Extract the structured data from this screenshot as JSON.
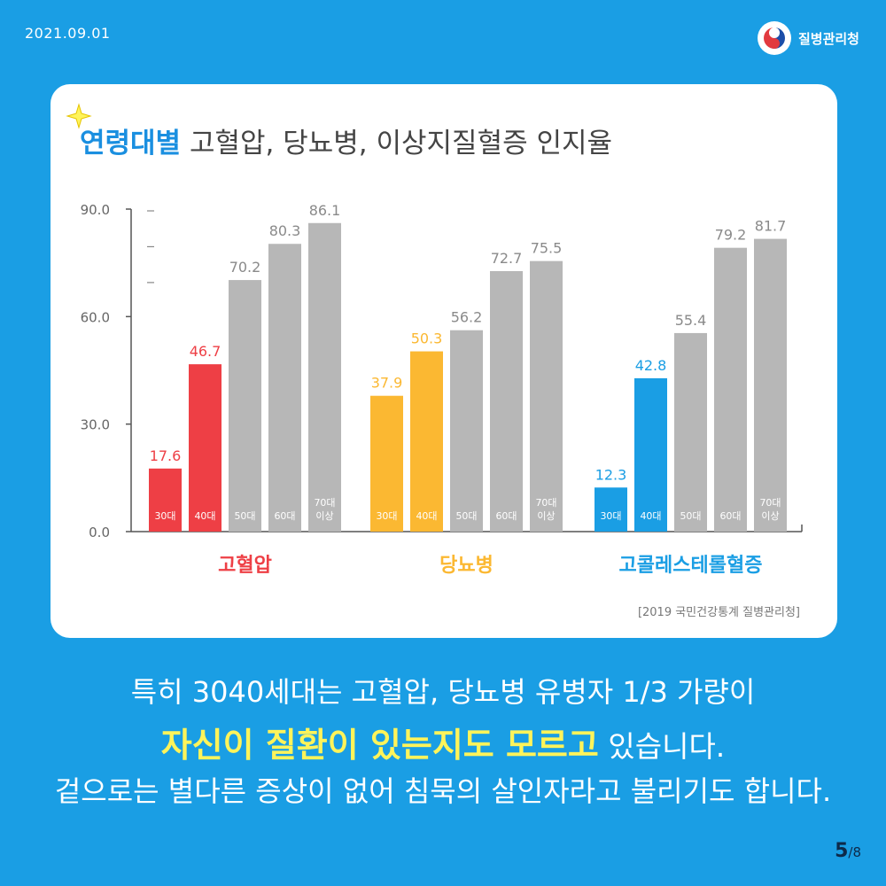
{
  "date": "2021.09.01",
  "brand": {
    "name": "질병관리청",
    "logo_icon": "taegeuk-icon"
  },
  "title": {
    "highlight": "연령대별",
    "rest": "고혈압, 당뇨병, 이상지질혈증 인지율"
  },
  "source": "[2019 국민건강통계 질병관리청]",
  "captions": {
    "line1": "특히 3040세대는 고혈압, 당뇨병 유병자 1/3 가량이",
    "line2_highlight": "자신이 질환이 있는지도 모르고",
    "line2_rest": "있습니다.",
    "line3": "겉으로는 별다른 증상이 없어 침묵의 살인자라고 불리기도 합니다."
  },
  "page": {
    "current": "5",
    "total": "/8"
  },
  "colors": {
    "background": "#1a9ee4",
    "hypertension": "#ee3f45",
    "diabetes": "#fbb832",
    "dyslipidemia": "#1a9ee4",
    "other_ages": "#b7b7b7",
    "highlight": "#fff45a"
  },
  "chart_data": {
    "type": "bar",
    "ylim": [
      0,
      90
    ],
    "yticks": [
      "0.0",
      "30.0",
      "60.0",
      "90.0"
    ],
    "groups": [
      {
        "name": "고혈압",
        "color": "#ee3f45",
        "categories": [
          "30대",
          "40대",
          "50대",
          "60대",
          "70대 이상"
        ],
        "values": [
          17.6,
          46.7,
          70.2,
          80.3,
          86.1
        ],
        "labels": [
          "17.6",
          "46.7",
          "70.2",
          "80.3",
          "86.1"
        ]
      },
      {
        "name": "당뇨병",
        "color": "#fbb832",
        "categories": [
          "30대",
          "40대",
          "50대",
          "60대",
          "70대 이상"
        ],
        "values": [
          37.9,
          50.3,
          56.2,
          72.7,
          75.5
        ],
        "labels": [
          "37.9",
          "50.3",
          "56.2",
          "72.7",
          "75.5"
        ]
      },
      {
        "name": "고콜레스테롤혈증",
        "color": "#1a9ee4",
        "categories": [
          "30대",
          "40대",
          "50대",
          "60대",
          "70대 이상"
        ],
        "values": [
          12.3,
          42.8,
          55.4,
          79.2,
          81.7
        ],
        "labels": [
          "12.3",
          "42.8",
          "55.4",
          "79.2",
          "81.7"
        ]
      }
    ],
    "highlighted_categories": [
      "30대",
      "40대"
    ],
    "grid": false
  }
}
